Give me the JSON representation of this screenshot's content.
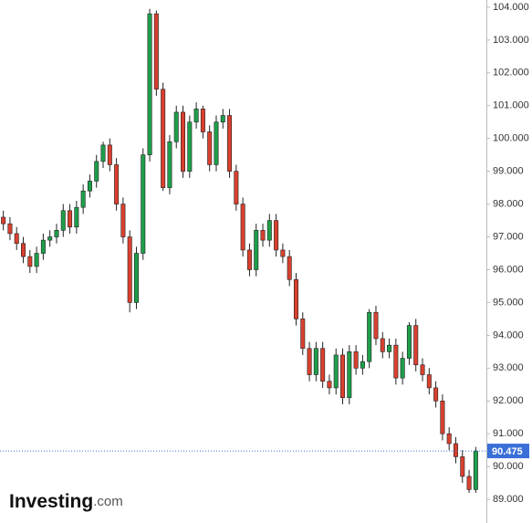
{
  "chart_data": {
    "type": "candlestick",
    "open": [
      97.6,
      97.4,
      97.1,
      96.8,
      96.4,
      96.1,
      96.5,
      96.9,
      97.0,
      97.2,
      97.8,
      97.3,
      97.9,
      98.4,
      98.7,
      99.3,
      99.8,
      99.2,
      98.0,
      97.0,
      95.0,
      96.5,
      99.5,
      103.8,
      101.5,
      98.5,
      99.9,
      100.8,
      99.0,
      100.5,
      100.9,
      100.2,
      99.2,
      100.5,
      100.7,
      99.0,
      98.0,
      96.6,
      96.0,
      97.2,
      96.9,
      97.5,
      96.6,
      96.4,
      95.7,
      94.5,
      93.6,
      92.8,
      93.6,
      92.6,
      92.4,
      93.4,
      92.1,
      93.5,
      93.0,
      93.2,
      94.7,
      93.9,
      93.5,
      93.7,
      92.7,
      93.3,
      94.3,
      93.1,
      92.8,
      92.4,
      92.0,
      91.0,
      90.7,
      90.3,
      89.7,
      89.3
    ],
    "high": [
      97.8,
      97.6,
      97.3,
      97.0,
      96.6,
      96.7,
      97.1,
      97.2,
      97.4,
      98.0,
      98.0,
      98.1,
      98.6,
      98.9,
      99.5,
      99.9,
      100.0,
      99.4,
      98.2,
      97.2,
      96.7,
      99.7,
      103.95,
      103.9,
      101.7,
      100.1,
      101.0,
      101.0,
      100.7,
      101.1,
      101.0,
      100.4,
      100.7,
      100.9,
      100.9,
      99.2,
      98.2,
      96.8,
      97.4,
      97.4,
      97.7,
      97.7,
      96.8,
      96.6,
      95.9,
      94.7,
      93.8,
      93.8,
      93.8,
      92.8,
      93.6,
      93.6,
      93.7,
      93.7,
      93.4,
      94.8,
      94.9,
      94.1,
      93.9,
      93.9,
      93.5,
      94.4,
      94.5,
      93.3,
      93.0,
      92.6,
      92.2,
      91.2,
      90.9,
      90.5,
      89.9,
      90.6
    ],
    "low": [
      97.2,
      96.9,
      96.6,
      96.2,
      95.9,
      95.9,
      96.3,
      96.7,
      96.8,
      97.0,
      97.1,
      97.1,
      97.7,
      98.2,
      98.5,
      99.1,
      99.0,
      97.8,
      96.8,
      94.7,
      94.8,
      96.3,
      99.3,
      101.3,
      98.4,
      98.3,
      99.7,
      98.8,
      98.8,
      100.3,
      100.0,
      99.0,
      99.0,
      100.3,
      98.8,
      97.8,
      96.4,
      95.8,
      95.8,
      96.7,
      96.7,
      96.4,
      96.2,
      95.5,
      94.3,
      93.4,
      92.6,
      92.6,
      92.4,
      92.2,
      92.2,
      91.9,
      91.9,
      92.8,
      92.8,
      93.0,
      93.7,
      93.3,
      93.3,
      92.5,
      92.5,
      93.1,
      92.9,
      92.6,
      92.2,
      91.8,
      90.8,
      90.5,
      90.1,
      89.5,
      89.2,
      89.2
    ],
    "close": [
      97.4,
      97.1,
      96.8,
      96.4,
      96.1,
      96.5,
      96.9,
      97.0,
      97.2,
      97.8,
      97.3,
      97.9,
      98.4,
      98.7,
      99.3,
      99.8,
      99.2,
      98.0,
      97.0,
      95.0,
      96.5,
      99.5,
      103.8,
      101.5,
      98.5,
      99.9,
      100.8,
      99.0,
      100.5,
      100.9,
      100.2,
      99.2,
      100.5,
      100.7,
      99.0,
      98.0,
      96.6,
      96.0,
      97.2,
      96.9,
      97.5,
      96.6,
      96.4,
      95.7,
      94.5,
      93.6,
      92.8,
      93.6,
      92.6,
      92.4,
      93.4,
      92.1,
      93.5,
      93.0,
      93.2,
      94.7,
      93.9,
      93.5,
      93.7,
      92.7,
      93.3,
      94.3,
      93.1,
      92.8,
      92.4,
      92.0,
      91.0,
      90.7,
      90.3,
      89.7,
      89.3,
      90.475
    ],
    "up_color": "#1e9e4a",
    "down_color": "#d9402f",
    "ylim": [
      88.28,
      104.22
    ],
    "yticks": [
      {
        "value": 89,
        "label": "89.000"
      },
      {
        "value": 90,
        "label": "90.000"
      },
      {
        "value": 91,
        "label": "91.000"
      },
      {
        "value": 92,
        "label": "92.000"
      },
      {
        "value": 93,
        "label": "93.000"
      },
      {
        "value": 94,
        "label": "94.000"
      },
      {
        "value": 95,
        "label": "95.000"
      },
      {
        "value": 96,
        "label": "96.000"
      },
      {
        "value": 97,
        "label": "97.000"
      },
      {
        "value": 98,
        "label": "98.000"
      },
      {
        "value": 99,
        "label": "99.000"
      },
      {
        "value": 100,
        "label": "100.000"
      },
      {
        "value": 101,
        "label": "101.000"
      },
      {
        "value": 102,
        "label": "102.000"
      },
      {
        "value": 103,
        "label": "103.000"
      },
      {
        "value": 104,
        "label": "104.000"
      }
    ],
    "last_price": {
      "value": 90.475,
      "label": "90.475"
    },
    "last_price_color": "#3a6fd8",
    "logo": {
      "name": "Investing",
      "suffix": ".com"
    }
  }
}
